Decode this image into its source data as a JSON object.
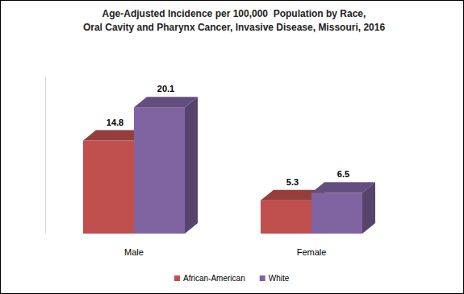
{
  "chart_data": {
    "type": "bar",
    "title": [
      "Age-Adjusted Incidence per 100,000  Population by Race,",
      "Oral Cavity and Pharynx Cancer, Invasive Disease, Missouri, 2016"
    ],
    "categories": [
      "Male",
      "Female"
    ],
    "series": [
      {
        "name": "African-American",
        "color": "#c0504d",
        "values": [
          14.8,
          5.3
        ]
      },
      {
        "name": "White",
        "color": "#8064a2",
        "values": [
          20.1,
          6.5
        ]
      }
    ],
    "ylim": [
      0,
      25
    ],
    "grid": false,
    "legend": "bottom",
    "data_labels": true,
    "tick_labels": "x"
  }
}
